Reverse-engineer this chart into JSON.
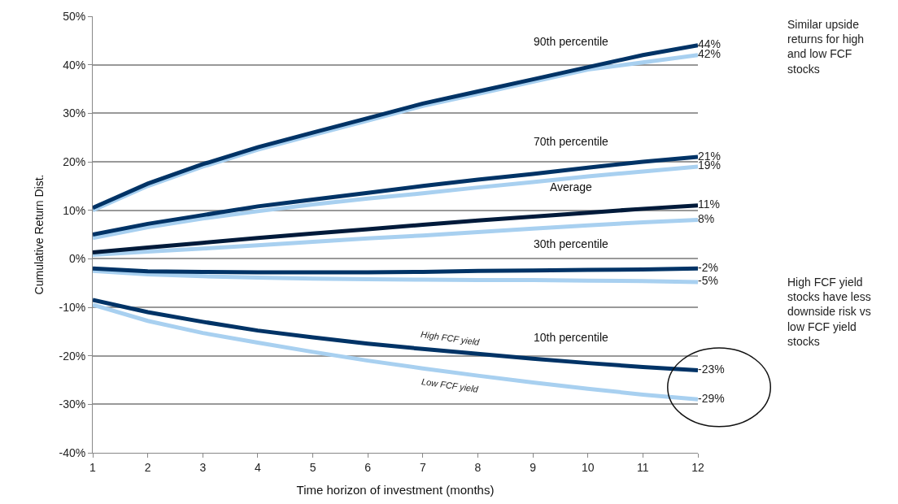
{
  "chart_data": {
    "type": "line",
    "xlabel": "Time horizon of investment (months)",
    "ylabel": "Cumulative Return Dist.",
    "x": [
      1,
      2,
      3,
      4,
      5,
      6,
      7,
      8,
      9,
      10,
      11,
      12
    ],
    "xlim": [
      1,
      12
    ],
    "xticks": [
      1,
      2,
      3,
      4,
      5,
      6,
      7,
      8,
      9,
      10,
      11,
      12
    ],
    "ylim": [
      -40,
      50
    ],
    "yticks": [
      {
        "value": -40,
        "label": "-40%"
      },
      {
        "value": -30,
        "label": "-30%"
      },
      {
        "value": -20,
        "label": "-20%"
      },
      {
        "value": -10,
        "label": "-10%"
      },
      {
        "value": 0,
        "label": "0%"
      },
      {
        "value": 10,
        "label": "10%"
      },
      {
        "value": 20,
        "label": "20%"
      },
      {
        "value": 30,
        "label": "30%"
      },
      {
        "value": 40,
        "label": "40%"
      },
      {
        "value": 50,
        "label": "50%"
      }
    ],
    "grid": "y",
    "marker": "none",
    "line_style": "solid",
    "series": [
      {
        "color": "#a8d0f0",
        "values": [
          10,
          15,
          19,
          22.5,
          25.5,
          28.5,
          31.5,
          34,
          36.5,
          39,
          40.5,
          42
        ],
        "value_labels": [
          null,
          null,
          null,
          null,
          null,
          null,
          null,
          null,
          null,
          null,
          null,
          "42%"
        ]
      },
      {
        "color": "#003366",
        "values": [
          10.5,
          15.5,
          19.5,
          23,
          26,
          29,
          32,
          34.5,
          37,
          39.5,
          42,
          44
        ],
        "value_labels": [
          null,
          null,
          null,
          null,
          null,
          null,
          null,
          null,
          null,
          null,
          null,
          "44%"
        ]
      },
      {
        "color": "#a8d0f0",
        "values": [
          4.3,
          6.5,
          8.3,
          9.8,
          11.2,
          12.4,
          13.5,
          14.7,
          15.8,
          17,
          18,
          19
        ],
        "value_labels": [
          null,
          null,
          null,
          null,
          null,
          null,
          null,
          null,
          null,
          null,
          null,
          "19%"
        ]
      },
      {
        "color": "#003366",
        "values": [
          5,
          7.2,
          9,
          10.8,
          12.2,
          13.6,
          15,
          16.3,
          17.5,
          18.8,
          20,
          21
        ],
        "value_labels": [
          null,
          null,
          null,
          null,
          null,
          null,
          null,
          null,
          null,
          null,
          null,
          "21%"
        ]
      },
      {
        "color": "#a8d0f0",
        "values": [
          0.8,
          1.5,
          2.1,
          2.8,
          3.5,
          4.2,
          4.8,
          5.5,
          6.2,
          6.9,
          7.5,
          8
        ],
        "value_labels": [
          null,
          null,
          null,
          null,
          null,
          null,
          null,
          null,
          null,
          null,
          null,
          "8%"
        ]
      },
      {
        "color": "#001a3a",
        "values": [
          1.3,
          2.3,
          3.3,
          4.3,
          5.2,
          6.1,
          7,
          7.9,
          8.7,
          9.5,
          10.3,
          11
        ],
        "value_labels": [
          null,
          null,
          null,
          null,
          null,
          null,
          null,
          null,
          null,
          null,
          null,
          "11%"
        ]
      },
      {
        "color": "#a8d0f0",
        "values": [
          -2.5,
          -3.2,
          -3.6,
          -3.9,
          -4.1,
          -4.2,
          -4.3,
          -4.4,
          -4.4,
          -4.5,
          -4.6,
          -4.8
        ],
        "value_labels": [
          null,
          null,
          null,
          null,
          null,
          null,
          null,
          null,
          null,
          null,
          null,
          "-5%"
        ]
      },
      {
        "color": "#003366",
        "values": [
          -2,
          -2.6,
          -2.7,
          -2.8,
          -2.8,
          -2.8,
          -2.7,
          -2.5,
          -2.4,
          -2.3,
          -2.2,
          -2
        ],
        "value_labels": [
          null,
          null,
          null,
          null,
          null,
          null,
          null,
          null,
          null,
          null,
          null,
          "-2%"
        ]
      },
      {
        "color": "#a8d0f0",
        "values": [
          -9.5,
          -12.8,
          -15.3,
          -17.3,
          -19.2,
          -21,
          -22.6,
          -24.1,
          -25.5,
          -26.8,
          -28,
          -29
        ],
        "value_labels": [
          null,
          null,
          null,
          null,
          null,
          null,
          null,
          null,
          null,
          null,
          null,
          "-29%"
        ]
      },
      {
        "color": "#003366",
        "values": [
          -8.5,
          -11,
          -13,
          -14.8,
          -16.2,
          -17.5,
          -18.6,
          -19.6,
          -20.6,
          -21.5,
          -22.3,
          -23
        ],
        "value_labels": [
          null,
          null,
          null,
          null,
          null,
          null,
          null,
          null,
          null,
          null,
          null,
          "-23%"
        ]
      }
    ],
    "annotations": [
      "90th percentile",
      "70th percentile",
      "Average",
      "30th percentile",
      "10th percentile",
      "High FCF yield",
      "Low FCF yield",
      "Similar upside returns for high and low FCF stocks",
      "High FCF yield stocks have less downside risk vs low FCF yield stocks"
    ]
  }
}
